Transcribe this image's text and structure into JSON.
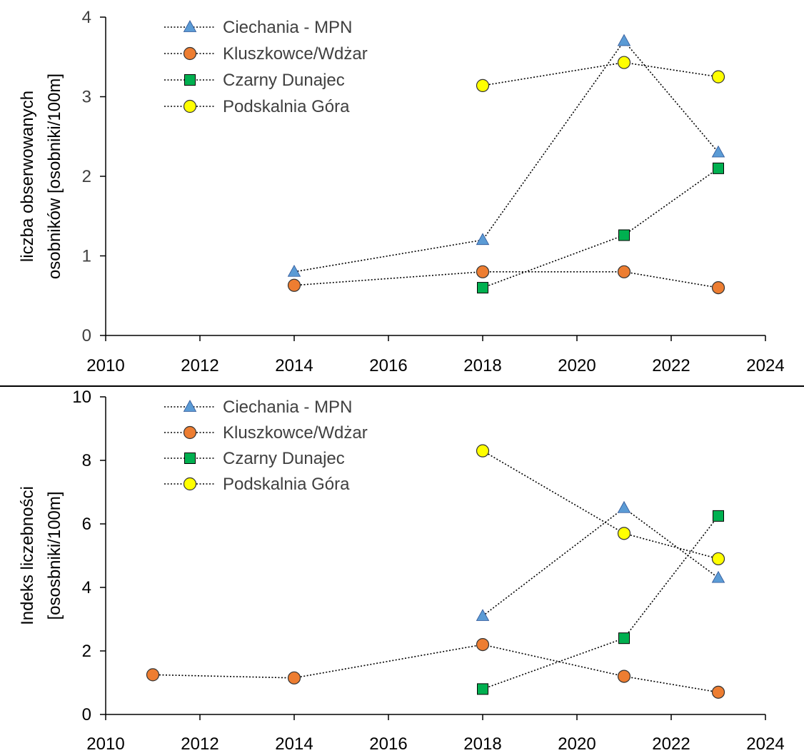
{
  "chart_data": [
    {
      "type": "line",
      "title": "",
      "ylabel_lines": [
        "liczba obserwowanych",
        "osobników [osobniki/100m]"
      ],
      "xlabel": "",
      "xlim": [
        2010,
        2024
      ],
      "ylim": [
        0,
        4
      ],
      "xticks": [
        2010,
        2012,
        2014,
        2016,
        2018,
        2020,
        2022,
        2024
      ],
      "yticks": [
        0,
        1,
        2,
        3,
        4
      ],
      "legend_position": "top-left",
      "series": [
        {
          "name": "Ciechania - MPN",
          "marker": "triangle",
          "color": "#5B9BD5",
          "points": [
            [
              2014,
              0.8
            ],
            [
              2018,
              1.2
            ],
            [
              2021,
              3.7
            ],
            [
              2023,
              2.3
            ]
          ]
        },
        {
          "name": "Kluszkowce/Wdżar",
          "marker": "circle",
          "color": "#ED7D31",
          "points": [
            [
              2014,
              0.63
            ],
            [
              2018,
              0.8
            ],
            [
              2021,
              0.8
            ],
            [
              2023,
              0.6
            ]
          ]
        },
        {
          "name": "Czarny Dunajec",
          "marker": "square",
          "color": "#00B050",
          "points": [
            [
              2018,
              0.6
            ],
            [
              2021,
              1.26
            ],
            [
              2023,
              2.1
            ]
          ]
        },
        {
          "name": "Podskalnia Góra",
          "marker": "circle",
          "color": "#FFFF00",
          "points": [
            [
              2018,
              3.14
            ],
            [
              2021,
              3.43
            ],
            [
              2023,
              3.25
            ]
          ]
        }
      ]
    },
    {
      "type": "line",
      "title": "",
      "ylabel_lines": [
        "Indeks liczebności",
        "[ososbniki/100m]"
      ],
      "xlabel": "",
      "xlim": [
        2010,
        2024
      ],
      "ylim": [
        0,
        10
      ],
      "xticks": [
        2010,
        2012,
        2014,
        2016,
        2018,
        2020,
        2022,
        2024
      ],
      "yticks": [
        0,
        2,
        4,
        6,
        8,
        10
      ],
      "legend_position": "top-left",
      "series": [
        {
          "name": "Ciechania - MPN",
          "marker": "triangle",
          "color": "#5B9BD5",
          "points": [
            [
              2018,
              3.1
            ],
            [
              2021,
              6.5
            ],
            [
              2023,
              4.3
            ]
          ]
        },
        {
          "name": "Kluszkowce/Wdżar",
          "marker": "circle",
          "color": "#ED7D31",
          "points": [
            [
              2011,
              1.25
            ],
            [
              2014,
              1.15
            ],
            [
              2018,
              2.2
            ],
            [
              2021,
              1.2
            ],
            [
              2023,
              0.7
            ]
          ]
        },
        {
          "name": "Czarny Dunajec",
          "marker": "square",
          "color": "#00B050",
          "points": [
            [
              2018,
              0.8
            ],
            [
              2021,
              2.4
            ],
            [
              2023,
              6.25
            ]
          ]
        },
        {
          "name": "Podskalnia Góra",
          "marker": "circle",
          "color": "#FFFF00",
          "points": [
            [
              2018,
              8.3
            ],
            [
              2021,
              5.7
            ],
            [
              2023,
              4.9
            ]
          ]
        }
      ]
    }
  ]
}
